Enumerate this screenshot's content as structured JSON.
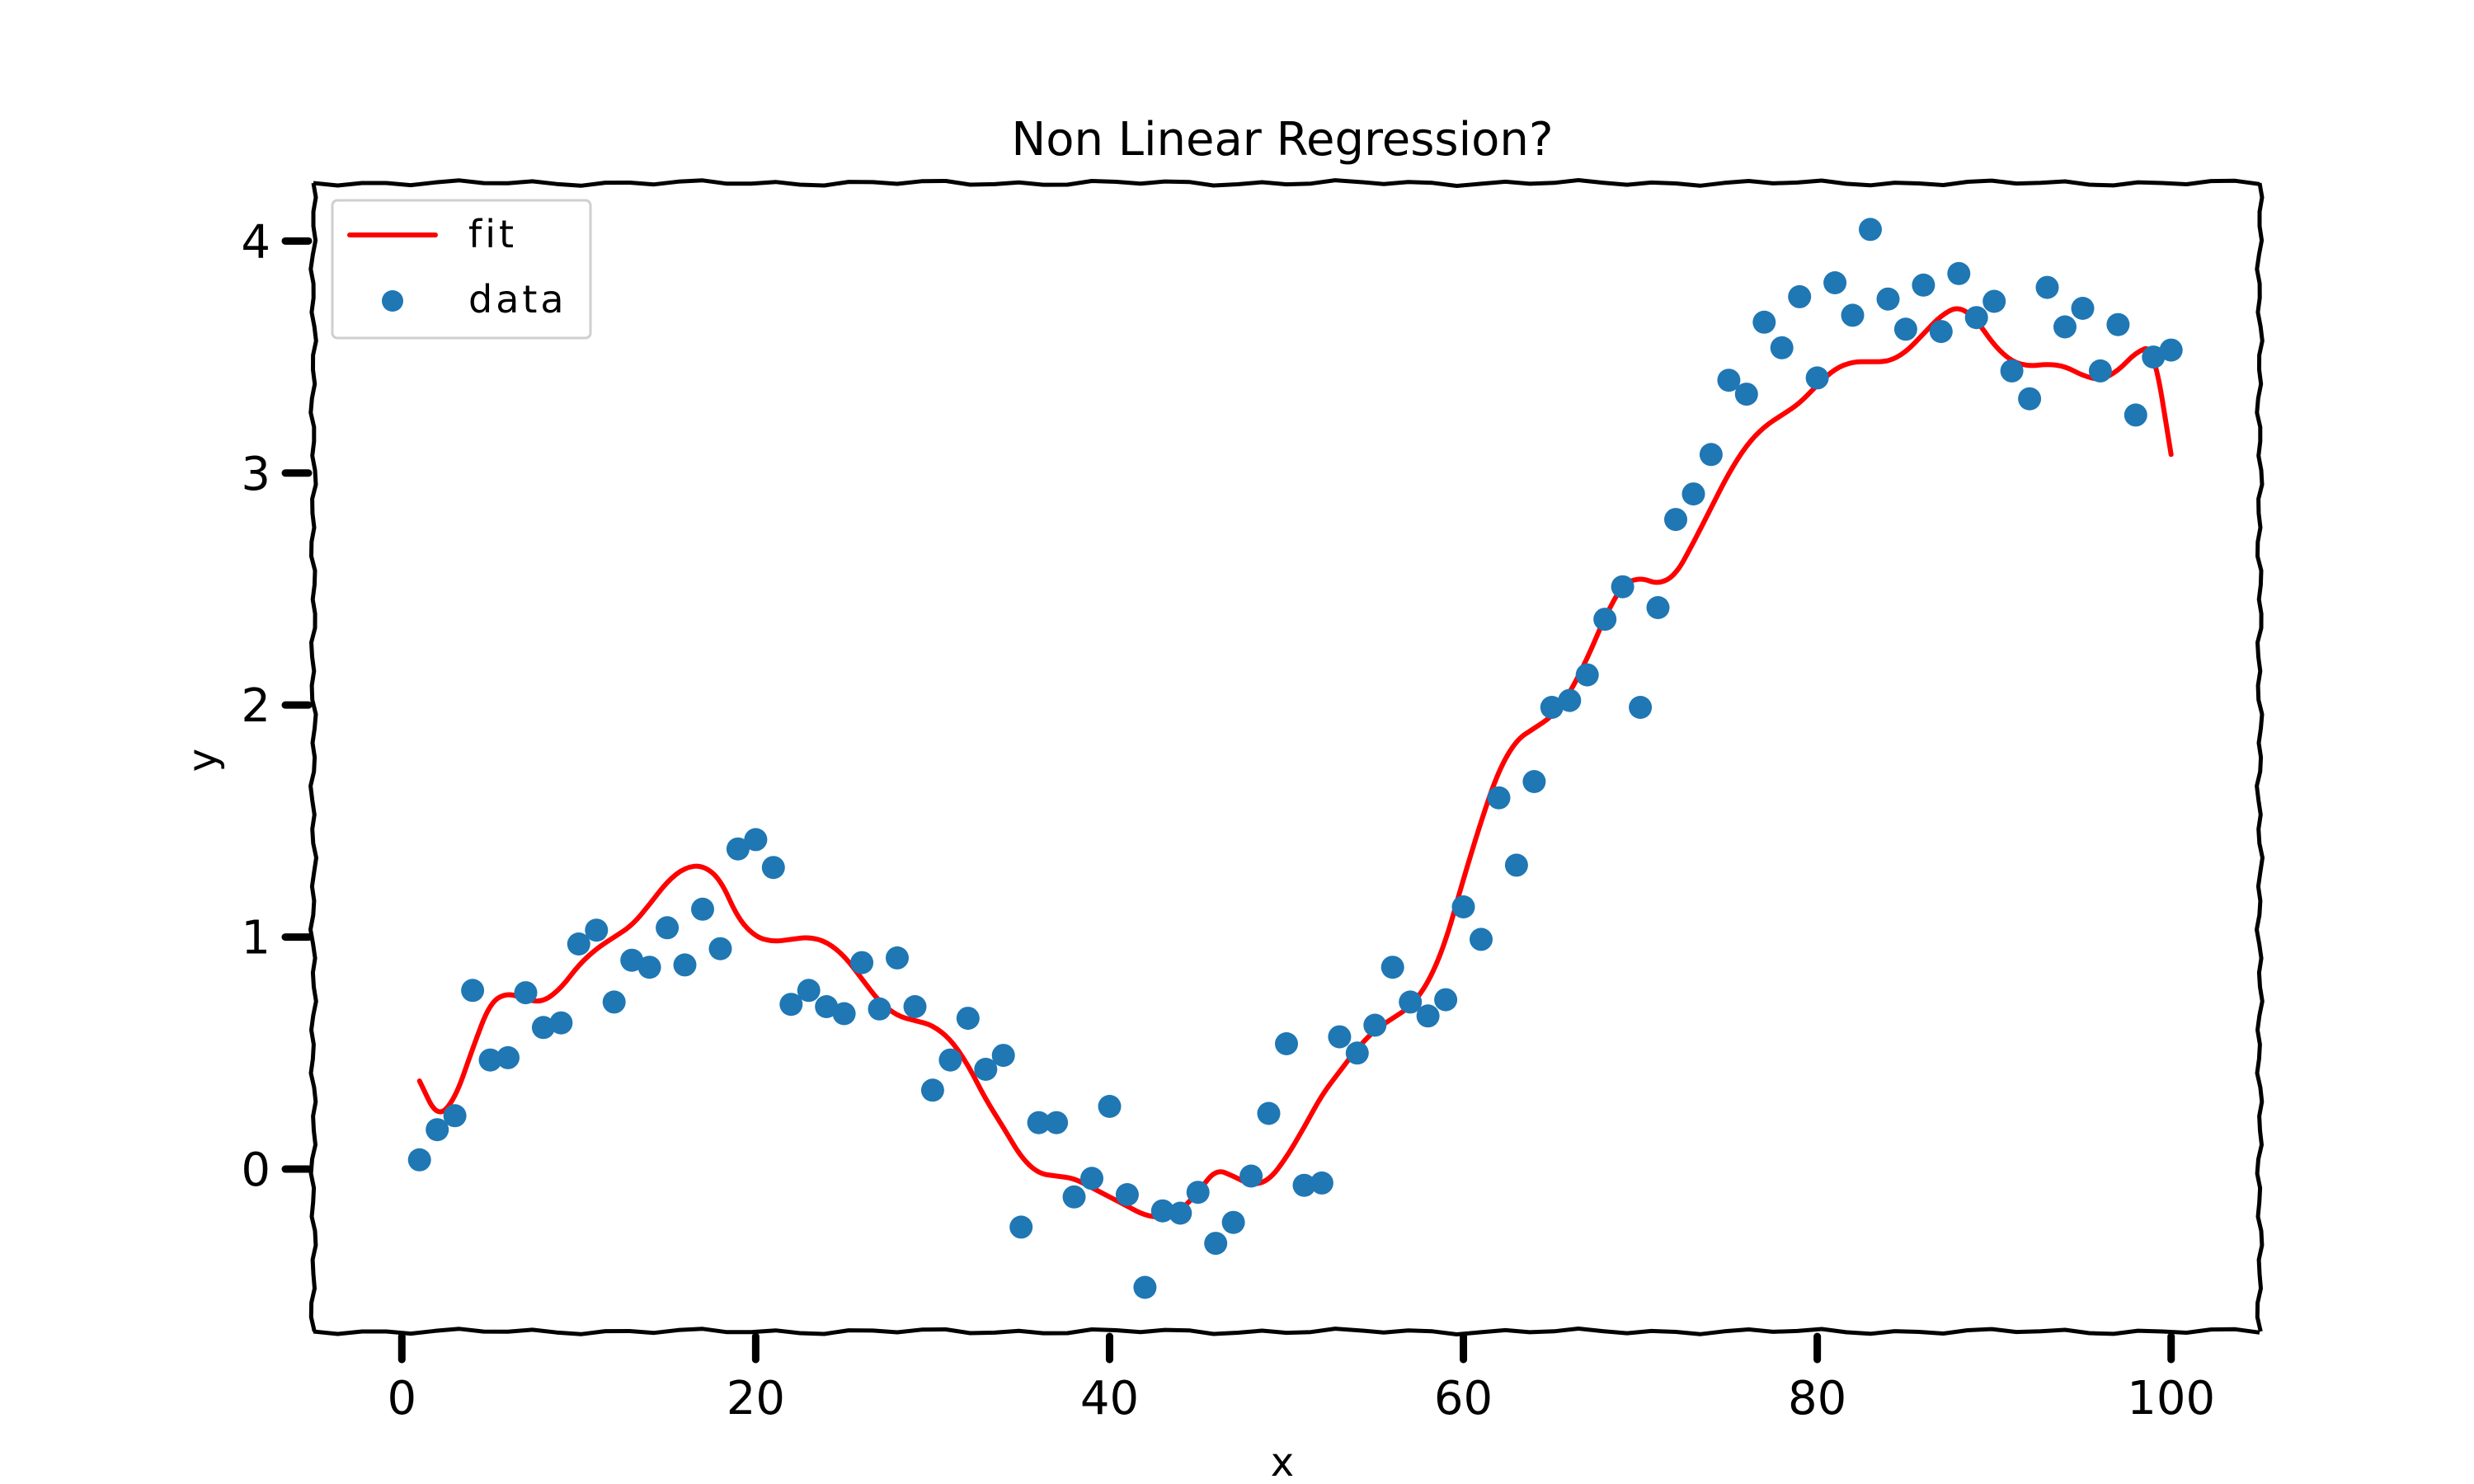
{
  "chart_data": {
    "type": "scatter",
    "title": "Non Linear Regression?",
    "xlabel": "x",
    "ylabel": "y",
    "xlim": [
      -5,
      105
    ],
    "ylim": [
      -0.7,
      4.25
    ],
    "xticks": [
      0,
      20,
      40,
      60,
      80,
      100
    ],
    "yticks": [
      0,
      1,
      2,
      3,
      4
    ],
    "grid": false,
    "legend_position": "upper-left",
    "series": [
      {
        "name": "fit",
        "kind": "line",
        "color": "#ff0000",
        "x": [
          1,
          2,
          3,
          4,
          5,
          6,
          7,
          8,
          9,
          10,
          11,
          12,
          13,
          14,
          15,
          16,
          17,
          18,
          19,
          20,
          21,
          22,
          23,
          24,
          25,
          26,
          27,
          28,
          29,
          30,
          31,
          32,
          33,
          34,
          35,
          36,
          37,
          38,
          39,
          40,
          41,
          42,
          43,
          44,
          45,
          46,
          47,
          48,
          49,
          50,
          51,
          52,
          53,
          54,
          55,
          56,
          57,
          58,
          59,
          60,
          61,
          62,
          63,
          64,
          65,
          66,
          67,
          68,
          69,
          70,
          71,
          72,
          73,
          74,
          75,
          76,
          77,
          78,
          79,
          80,
          81,
          82,
          83,
          84,
          85,
          86,
          87,
          88,
          89,
          90,
          91,
          92,
          93,
          94,
          95,
          96,
          97,
          98,
          99,
          100
        ],
        "y": [
          0.38,
          0.22,
          0.3,
          0.52,
          0.72,
          0.76,
          0.73,
          0.72,
          0.78,
          0.88,
          0.95,
          1.0,
          1.05,
          1.14,
          1.24,
          1.3,
          1.31,
          1.25,
          1.08,
          1.0,
          0.98,
          0.99,
          1.0,
          0.98,
          0.92,
          0.82,
          0.72,
          0.66,
          0.64,
          0.62,
          0.56,
          0.45,
          0.3,
          0.18,
          0.05,
          -0.02,
          -0.03,
          -0.04,
          -0.08,
          -0.12,
          -0.16,
          -0.2,
          -0.21,
          -0.18,
          -0.1,
          0.0,
          -0.03,
          -0.07,
          -0.05,
          0.05,
          0.18,
          0.32,
          0.42,
          0.52,
          0.6,
          0.65,
          0.7,
          0.8,
          0.98,
          1.25,
          1.5,
          1.72,
          1.85,
          1.9,
          1.95,
          2.05,
          2.2,
          2.38,
          2.52,
          2.55,
          2.52,
          2.56,
          2.7,
          2.85,
          3.0,
          3.12,
          3.2,
          3.25,
          3.3,
          3.38,
          3.45,
          3.48,
          3.48,
          3.48,
          3.52,
          3.6,
          3.68,
          3.72,
          3.66,
          3.55,
          3.48,
          3.46,
          3.47,
          3.46,
          3.42,
          3.4,
          3.44,
          3.52,
          3.55,
          3.08
        ]
      },
      {
        "name": "data",
        "kind": "scatter",
        "color": "#1f77b4",
        "x": [
          1,
          2,
          3,
          4,
          5,
          6,
          7,
          8,
          9,
          10,
          11,
          12,
          13,
          14,
          15,
          16,
          17,
          18,
          19,
          20,
          21,
          22,
          23,
          24,
          25,
          26,
          27,
          28,
          29,
          30,
          31,
          32,
          33,
          34,
          35,
          36,
          37,
          38,
          39,
          40,
          41,
          42,
          43,
          44,
          45,
          46,
          47,
          48,
          49,
          50,
          51,
          52,
          53,
          54,
          55,
          56,
          57,
          58,
          59,
          60,
          61,
          62,
          63,
          64,
          65,
          66,
          67,
          68,
          69,
          70,
          71,
          72,
          73,
          74,
          75,
          76,
          77,
          78,
          79,
          80,
          81,
          82,
          83,
          84,
          85,
          86,
          87,
          88,
          89,
          90,
          91,
          92,
          93,
          94,
          95,
          96,
          97,
          98,
          99,
          100
        ],
        "y": [
          0.04,
          0.17,
          0.23,
          0.77,
          0.47,
          0.48,
          0.76,
          0.61,
          0.63,
          0.97,
          1.03,
          0.72,
          0.9,
          0.87,
          1.04,
          0.88,
          1.12,
          0.95,
          1.38,
          1.42,
          1.3,
          0.71,
          0.77,
          0.7,
          0.67,
          0.89,
          0.69,
          0.91,
          0.7,
          0.34,
          0.47,
          0.65,
          0.43,
          0.49,
          -0.25,
          0.2,
          0.2,
          -0.12,
          -0.04,
          0.27,
          -0.11,
          -0.51,
          -0.18,
          -0.19,
          -0.1,
          -0.32,
          -0.23,
          -0.03,
          0.24,
          0.54,
          -0.07,
          -0.06,
          0.57,
          0.5,
          0.62,
          0.87,
          0.72,
          0.66,
          0.73,
          1.13,
          0.99,
          1.6,
          1.31,
          1.67,
          1.99,
          2.02,
          2.13,
          2.37,
          2.51,
          1.99,
          2.42,
          2.8,
          2.91,
          3.08,
          3.4,
          3.34,
          3.65,
          3.54,
          3.76,
          3.41,
          3.82,
          3.68,
          4.05,
          3.75,
          3.62,
          3.81,
          3.61,
          3.86,
          3.67,
          3.74,
          3.44,
          3.32,
          3.8,
          3.63,
          3.71,
          3.44,
          3.64,
          3.25,
          3.5,
          3.53
        ]
      }
    ]
  }
}
